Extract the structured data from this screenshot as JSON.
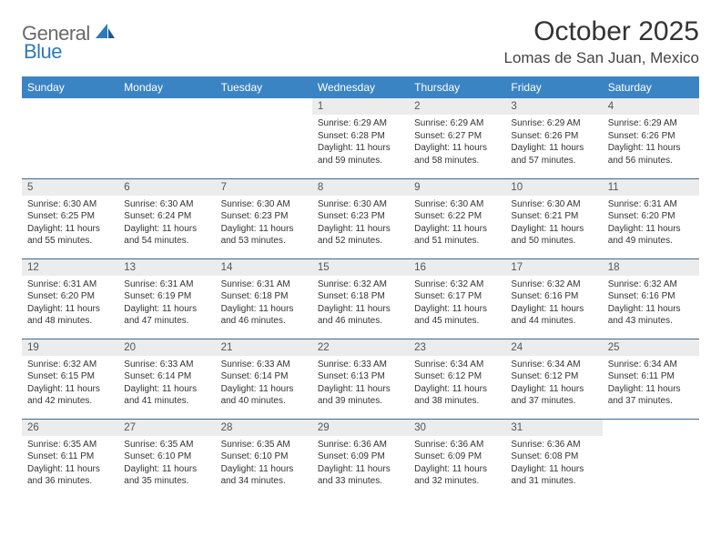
{
  "brand": {
    "part1": "General",
    "part2": "Blue"
  },
  "title": "October 2025",
  "location": "Lomas de San Juan, Mexico",
  "colors": {
    "header_bg": "#3b84c4",
    "header_text": "#ffffff",
    "daynum_bg": "#ececec",
    "rule": "#3b6a94",
    "logo_gray": "#6a6a6a",
    "logo_blue": "#2f7ab8"
  },
  "weekdays": [
    "Sunday",
    "Monday",
    "Tuesday",
    "Wednesday",
    "Thursday",
    "Friday",
    "Saturday"
  ],
  "weeks": [
    [
      {
        "num": "",
        "lines": []
      },
      {
        "num": "",
        "lines": []
      },
      {
        "num": "",
        "lines": []
      },
      {
        "num": "1",
        "lines": [
          "Sunrise: 6:29 AM",
          "Sunset: 6:28 PM",
          "Daylight: 11 hours and 59 minutes."
        ]
      },
      {
        "num": "2",
        "lines": [
          "Sunrise: 6:29 AM",
          "Sunset: 6:27 PM",
          "Daylight: 11 hours and 58 minutes."
        ]
      },
      {
        "num": "3",
        "lines": [
          "Sunrise: 6:29 AM",
          "Sunset: 6:26 PM",
          "Daylight: 11 hours and 57 minutes."
        ]
      },
      {
        "num": "4",
        "lines": [
          "Sunrise: 6:29 AM",
          "Sunset: 6:26 PM",
          "Daylight: 11 hours and 56 minutes."
        ]
      }
    ],
    [
      {
        "num": "5",
        "lines": [
          "Sunrise: 6:30 AM",
          "Sunset: 6:25 PM",
          "Daylight: 11 hours and 55 minutes."
        ]
      },
      {
        "num": "6",
        "lines": [
          "Sunrise: 6:30 AM",
          "Sunset: 6:24 PM",
          "Daylight: 11 hours and 54 minutes."
        ]
      },
      {
        "num": "7",
        "lines": [
          "Sunrise: 6:30 AM",
          "Sunset: 6:23 PM",
          "Daylight: 11 hours and 53 minutes."
        ]
      },
      {
        "num": "8",
        "lines": [
          "Sunrise: 6:30 AM",
          "Sunset: 6:23 PM",
          "Daylight: 11 hours and 52 minutes."
        ]
      },
      {
        "num": "9",
        "lines": [
          "Sunrise: 6:30 AM",
          "Sunset: 6:22 PM",
          "Daylight: 11 hours and 51 minutes."
        ]
      },
      {
        "num": "10",
        "lines": [
          "Sunrise: 6:30 AM",
          "Sunset: 6:21 PM",
          "Daylight: 11 hours and 50 minutes."
        ]
      },
      {
        "num": "11",
        "lines": [
          "Sunrise: 6:31 AM",
          "Sunset: 6:20 PM",
          "Daylight: 11 hours and 49 minutes."
        ]
      }
    ],
    [
      {
        "num": "12",
        "lines": [
          "Sunrise: 6:31 AM",
          "Sunset: 6:20 PM",
          "Daylight: 11 hours and 48 minutes."
        ]
      },
      {
        "num": "13",
        "lines": [
          "Sunrise: 6:31 AM",
          "Sunset: 6:19 PM",
          "Daylight: 11 hours and 47 minutes."
        ]
      },
      {
        "num": "14",
        "lines": [
          "Sunrise: 6:31 AM",
          "Sunset: 6:18 PM",
          "Daylight: 11 hours and 46 minutes."
        ]
      },
      {
        "num": "15",
        "lines": [
          "Sunrise: 6:32 AM",
          "Sunset: 6:18 PM",
          "Daylight: 11 hours and 46 minutes."
        ]
      },
      {
        "num": "16",
        "lines": [
          "Sunrise: 6:32 AM",
          "Sunset: 6:17 PM",
          "Daylight: 11 hours and 45 minutes."
        ]
      },
      {
        "num": "17",
        "lines": [
          "Sunrise: 6:32 AM",
          "Sunset: 6:16 PM",
          "Daylight: 11 hours and 44 minutes."
        ]
      },
      {
        "num": "18",
        "lines": [
          "Sunrise: 6:32 AM",
          "Sunset: 6:16 PM",
          "Daylight: 11 hours and 43 minutes."
        ]
      }
    ],
    [
      {
        "num": "19",
        "lines": [
          "Sunrise: 6:32 AM",
          "Sunset: 6:15 PM",
          "Daylight: 11 hours and 42 minutes."
        ]
      },
      {
        "num": "20",
        "lines": [
          "Sunrise: 6:33 AM",
          "Sunset: 6:14 PM",
          "Daylight: 11 hours and 41 minutes."
        ]
      },
      {
        "num": "21",
        "lines": [
          "Sunrise: 6:33 AM",
          "Sunset: 6:14 PM",
          "Daylight: 11 hours and 40 minutes."
        ]
      },
      {
        "num": "22",
        "lines": [
          "Sunrise: 6:33 AM",
          "Sunset: 6:13 PM",
          "Daylight: 11 hours and 39 minutes."
        ]
      },
      {
        "num": "23",
        "lines": [
          "Sunrise: 6:34 AM",
          "Sunset: 6:12 PM",
          "Daylight: 11 hours and 38 minutes."
        ]
      },
      {
        "num": "24",
        "lines": [
          "Sunrise: 6:34 AM",
          "Sunset: 6:12 PM",
          "Daylight: 11 hours and 37 minutes."
        ]
      },
      {
        "num": "25",
        "lines": [
          "Sunrise: 6:34 AM",
          "Sunset: 6:11 PM",
          "Daylight: 11 hours and 37 minutes."
        ]
      }
    ],
    [
      {
        "num": "26",
        "lines": [
          "Sunrise: 6:35 AM",
          "Sunset: 6:11 PM",
          "Daylight: 11 hours and 36 minutes."
        ]
      },
      {
        "num": "27",
        "lines": [
          "Sunrise: 6:35 AM",
          "Sunset: 6:10 PM",
          "Daylight: 11 hours and 35 minutes."
        ]
      },
      {
        "num": "28",
        "lines": [
          "Sunrise: 6:35 AM",
          "Sunset: 6:10 PM",
          "Daylight: 11 hours and 34 minutes."
        ]
      },
      {
        "num": "29",
        "lines": [
          "Sunrise: 6:36 AM",
          "Sunset: 6:09 PM",
          "Daylight: 11 hours and 33 minutes."
        ]
      },
      {
        "num": "30",
        "lines": [
          "Sunrise: 6:36 AM",
          "Sunset: 6:09 PM",
          "Daylight: 11 hours and 32 minutes."
        ]
      },
      {
        "num": "31",
        "lines": [
          "Sunrise: 6:36 AM",
          "Sunset: 6:08 PM",
          "Daylight: 11 hours and 31 minutes."
        ]
      },
      {
        "num": "",
        "lines": []
      }
    ]
  ]
}
